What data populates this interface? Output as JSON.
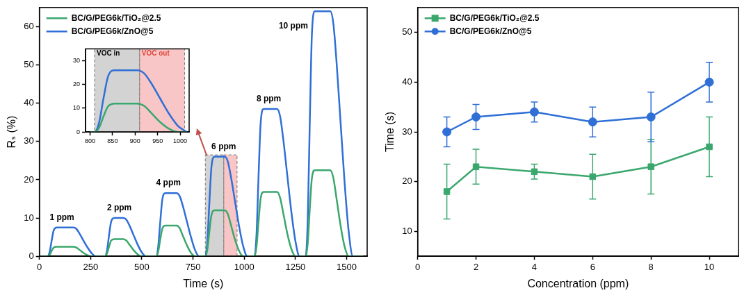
{
  "chart_data": [
    {
      "type": "line",
      "x_label": "Time (s)",
      "y_label": "Rₛ (%)",
      "xlim": [
        0,
        1600
      ],
      "xticks": [
        0,
        250,
        500,
        750,
        1000,
        1250,
        1500
      ],
      "ylim": [
        0,
        65
      ],
      "yticks": [
        0,
        10,
        20,
        30,
        40,
        50,
        60
      ],
      "grid": false,
      "legend": "upper left",
      "x": [
        0,
        30,
        40,
        50,
        60,
        70,
        85,
        165,
        180,
        195,
        215,
        235,
        255,
        275,
        310,
        320,
        330,
        340,
        350,
        365,
        410,
        425,
        440,
        460,
        480,
        500,
        520,
        560,
        570,
        580,
        590,
        600,
        615,
        670,
        685,
        700,
        720,
        740,
        760,
        780,
        800,
        810,
        820,
        830,
        840,
        855,
        905,
        920,
        935,
        955,
        975,
        995,
        1015,
        1040,
        1050,
        1060,
        1070,
        1080,
        1095,
        1160,
        1175,
        1190,
        1210,
        1230,
        1250,
        1270,
        1290,
        1300,
        1310,
        1320,
        1330,
        1345,
        1420,
        1435,
        1450,
        1470,
        1490,
        1510,
        1530,
        1580
      ],
      "series": [
        {
          "name": "BC/G/PEG6k/TiO₂@2.5",
          "color": "#3aa76d",
          "line_style": "solid",
          "marker": "none",
          "values": [
            0,
            0,
            0,
            0.4,
            1.4,
            2.3,
            2.5,
            2.5,
            2.3,
            1.7,
            0.9,
            0.3,
            0,
            0,
            0,
            0,
            0.7,
            2.5,
            4.1,
            4.5,
            4.5,
            4.1,
            3.0,
            1.6,
            0.5,
            0,
            0,
            0,
            0,
            1.2,
            4.4,
            7.2,
            8,
            8,
            7.3,
            5.4,
            2.9,
            0.9,
            0,
            0,
            0,
            0,
            1.8,
            6.6,
            10.8,
            12,
            12,
            11,
            8.2,
            4.3,
            1.4,
            0,
            0,
            0,
            0,
            2.5,
            9.2,
            15.1,
            16.8,
            16.8,
            15.3,
            11.4,
            6,
            1.9,
            0,
            0,
            0,
            0,
            3.4,
            12.4,
            20.3,
            22.5,
            22.5,
            20.5,
            15.3,
            8.1,
            2.5,
            0,
            0,
            0
          ]
        },
        {
          "name": "BC/G/PEG6k/ZnO@5",
          "color": "#2f6fd6",
          "line_style": "solid",
          "marker": "none",
          "values": [
            0,
            0,
            0,
            1.1,
            4.1,
            6.8,
            7.5,
            7.5,
            7.2,
            6.0,
            4.1,
            2.3,
            0.8,
            0,
            0,
            0,
            1.5,
            5.5,
            9,
            10,
            10,
            9.5,
            8,
            5.5,
            3,
            1,
            0,
            0,
            0,
            2.5,
            9,
            14.8,
            16.5,
            16.5,
            15.7,
            13.2,
            9.1,
            5,
            1.6,
            0,
            0,
            0,
            3.9,
            14.3,
            23.4,
            26,
            26,
            24.7,
            20.8,
            14.3,
            7.8,
            2.6,
            0,
            0,
            0,
            5.8,
            21.2,
            34.7,
            38.5,
            38.5,
            36.6,
            30.8,
            21.2,
            11.6,
            3.9,
            0,
            0,
            0,
            9.6,
            35.2,
            57.6,
            64,
            64,
            60.8,
            51.2,
            35.2,
            19.2,
            6.4,
            0,
            0
          ]
        }
      ],
      "annotations": [
        {
          "text": "1 ppm",
          "x": 110,
          "y": 9
        },
        {
          "text": "2 ppm",
          "x": 390,
          "y": 11.5
        },
        {
          "text": "4 ppm",
          "x": 630,
          "y": 18
        },
        {
          "text": "6 ppm",
          "x": 900,
          "y": 27.5
        },
        {
          "text": "8 ppm",
          "x": 1120,
          "y": 40
        },
        {
          "text": "10 ppm",
          "x": 1240,
          "y": 59
        }
      ],
      "regions": [
        {
          "xmin": 810,
          "xmax": 900,
          "ymin": 0,
          "ymax": 26.5,
          "color": "#9e9e9e"
        },
        {
          "xmin": 900,
          "xmax": 965,
          "ymin": 0,
          "ymax": 26.5,
          "color": "#f08080"
        }
      ]
    },
    {
      "type": "line",
      "xlim": [
        790,
        1020
      ],
      "xticks": [
        800,
        850,
        900,
        950,
        1000
      ],
      "ylim": [
        0,
        35
      ],
      "yticks": [
        0,
        10,
        20,
        30
      ],
      "grid": false,
      "x": [
        800,
        810,
        820,
        830,
        840,
        855,
        905,
        920,
        935,
        955,
        975,
        995,
        1015
      ],
      "series": [
        {
          "color": "#3aa76d",
          "line_style": "solid",
          "marker": "none",
          "values": [
            0,
            0,
            1.8,
            6.6,
            10.8,
            12,
            12,
            11,
            8.2,
            4.3,
            1.4,
            0,
            0
          ]
        },
        {
          "color": "#2f6fd6",
          "line_style": "solid",
          "marker": "none",
          "values": [
            0,
            0,
            3.9,
            14.3,
            23.4,
            26,
            26,
            24.7,
            20.8,
            14.3,
            7.8,
            2.6,
            0
          ]
        }
      ],
      "regions": [
        {
          "xmin": 810,
          "xmax": 910,
          "ymin": 0,
          "ymax": 35,
          "color": "#9e9e9e",
          "label": "VOC in",
          "label_color": "#000000"
        },
        {
          "xmin": 910,
          "xmax": 1010,
          "ymin": 0,
          "ymax": 35,
          "color": "#f08080",
          "label": "VOC out",
          "label_color": "#e0453a"
        }
      ]
    },
    {
      "type": "line",
      "x_label": "Concentration (ppm)",
      "y_label": "Time (s)",
      "xlim": [
        0,
        11
      ],
      "xticks": [
        0,
        2,
        4,
        6,
        8,
        10
      ],
      "ylim": [
        5,
        55
      ],
      "yticks": [
        10,
        20,
        30,
        40,
        50
      ],
      "grid": false,
      "legend": "upper left",
      "x": [
        1,
        2,
        4,
        6,
        8,
        10
      ],
      "series": [
        {
          "name": "BC/G/PEG6k/TiO₂@2.5",
          "color": "#3aa76d",
          "line_style": "solid",
          "marker": "square",
          "values": [
            18,
            23,
            22,
            21,
            23,
            27
          ],
          "errors": [
            5.5,
            3.5,
            1.5,
            4.5,
            5.5,
            6
          ]
        },
        {
          "name": "BC/G/PEG6k/ZnO@5",
          "color": "#2f6fd6",
          "line_style": "solid",
          "marker": "circle",
          "values": [
            30,
            33,
            34,
            32,
            33,
            40
          ],
          "errors": [
            3,
            2.5,
            2,
            3,
            5,
            4
          ]
        }
      ]
    }
  ]
}
